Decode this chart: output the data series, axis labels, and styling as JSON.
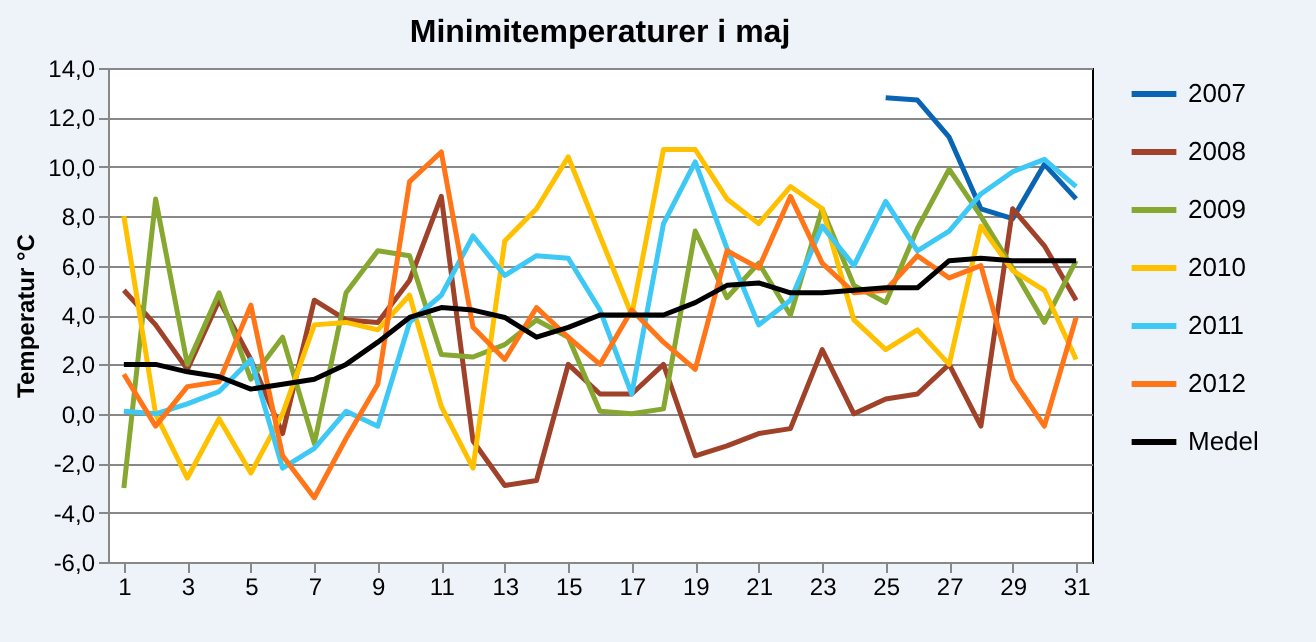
{
  "chart_data": {
    "type": "line",
    "title": "Minimitemperaturer i maj",
    "ylabel": "Temperatur °C",
    "x": [
      1,
      2,
      3,
      4,
      5,
      6,
      7,
      8,
      9,
      10,
      11,
      12,
      13,
      14,
      15,
      16,
      17,
      18,
      19,
      20,
      21,
      22,
      23,
      24,
      25,
      26,
      27,
      28,
      29,
      30,
      31
    ],
    "xlim": [
      0.5,
      31.5
    ],
    "xticks": [
      1,
      3,
      5,
      7,
      9,
      11,
      13,
      15,
      17,
      19,
      21,
      23,
      25,
      27,
      29,
      31
    ],
    "ylim": [
      -6,
      14
    ],
    "yticks": [
      {
        "value": -6,
        "label": "-6,0"
      },
      {
        "value": -4,
        "label": "-4,0"
      },
      {
        "value": -2,
        "label": "-2,0"
      },
      {
        "value": 0,
        "label": "0,0"
      },
      {
        "value": 2,
        "label": "2,0"
      },
      {
        "value": 4,
        "label": "4,0"
      },
      {
        "value": 6,
        "label": "6,0"
      },
      {
        "value": 8,
        "label": "8,0"
      },
      {
        "value": 10,
        "label": "10,0"
      },
      {
        "value": 12,
        "label": "12,0"
      },
      {
        "value": 14,
        "label": "14,0"
      }
    ],
    "grid": "y",
    "legend": "right",
    "line_style": "solid",
    "marker": "none",
    "series": [
      {
        "name": "2007",
        "color": "#0a64b4",
        "values": [
          null,
          null,
          null,
          null,
          null,
          null,
          null,
          null,
          null,
          null,
          null,
          null,
          null,
          null,
          null,
          null,
          null,
          null,
          null,
          null,
          null,
          null,
          null,
          null,
          12.8,
          12.7,
          11.2,
          8.3,
          7.9,
          10.1,
          8.7
        ]
      },
      {
        "name": "2008",
        "color": "#a0422a",
        "values": [
          5.0,
          3.6,
          1.8,
          4.6,
          2.2,
          -0.8,
          4.6,
          3.8,
          3.7,
          5.4,
          8.8,
          -1.1,
          -2.9,
          -2.7,
          2.0,
          0.8,
          0.8,
          2.0,
          -1.7,
          -1.3,
          -0.8,
          -0.6,
          2.6,
          0.0,
          0.6,
          0.8,
          2.0,
          -0.5,
          8.3,
          6.8,
          4.6
        ]
      },
      {
        "name": "2009",
        "color": "#86a830",
        "values": [
          -3.0,
          8.7,
          2.0,
          4.9,
          1.4,
          3.1,
          -1.2,
          4.9,
          6.6,
          6.4,
          2.4,
          2.3,
          2.8,
          3.8,
          3.1,
          0.1,
          0.0,
          0.2,
          7.4,
          4.7,
          6.1,
          4.0,
          8.3,
          5.2,
          4.5,
          7.5,
          9.9,
          8.0,
          5.9,
          3.7,
          6.2
        ]
      },
      {
        "name": "2010",
        "color": "#ffc000",
        "values": [
          8.0,
          0.0,
          -2.6,
          -0.2,
          -2.4,
          0.0,
          3.6,
          3.7,
          3.4,
          4.8,
          0.3,
          -2.2,
          7.0,
          8.3,
          10.4,
          7.2,
          4.0,
          10.7,
          10.7,
          8.7,
          7.7,
          9.2,
          8.3,
          3.8,
          2.6,
          3.4,
          2.0,
          7.6,
          5.8,
          5.0,
          2.2
        ]
      },
      {
        "name": "2011",
        "color": "#3ec8f5",
        "values": [
          0.1,
          0.0,
          0.4,
          0.9,
          2.2,
          -2.2,
          -1.4,
          0.1,
          -0.5,
          3.7,
          4.8,
          7.2,
          5.6,
          6.4,
          6.3,
          4.2,
          0.8,
          7.7,
          10.2,
          6.7,
          3.6,
          4.6,
          7.6,
          6.0,
          8.6,
          6.6,
          7.4,
          8.9,
          9.8,
          10.3,
          9.2
        ]
      },
      {
        "name": "2012",
        "color": "#ff7518",
        "values": [
          1.6,
          -0.5,
          1.1,
          1.3,
          4.4,
          -1.7,
          -3.4,
          -1.0,
          1.2,
          9.4,
          10.6,
          3.5,
          2.2,
          4.3,
          3.1,
          2.0,
          4.2,
          2.9,
          1.8,
          6.6,
          5.9,
          8.8,
          6.1,
          4.9,
          5.0,
          6.4,
          5.5,
          6.0,
          1.4,
          -0.5,
          3.9
        ]
      },
      {
        "name": "Medel",
        "color": "#000000",
        "values": [
          2.0,
          2.0,
          1.7,
          1.5,
          1.0,
          1.2,
          1.4,
          2.0,
          2.9,
          3.9,
          4.3,
          4.2,
          3.9,
          3.1,
          3.5,
          4.0,
          4.0,
          4.0,
          4.5,
          5.2,
          5.3,
          4.9,
          4.9,
          5.0,
          5.1,
          5.1,
          6.2,
          6.3,
          6.2,
          6.2,
          6.2
        ]
      }
    ]
  }
}
